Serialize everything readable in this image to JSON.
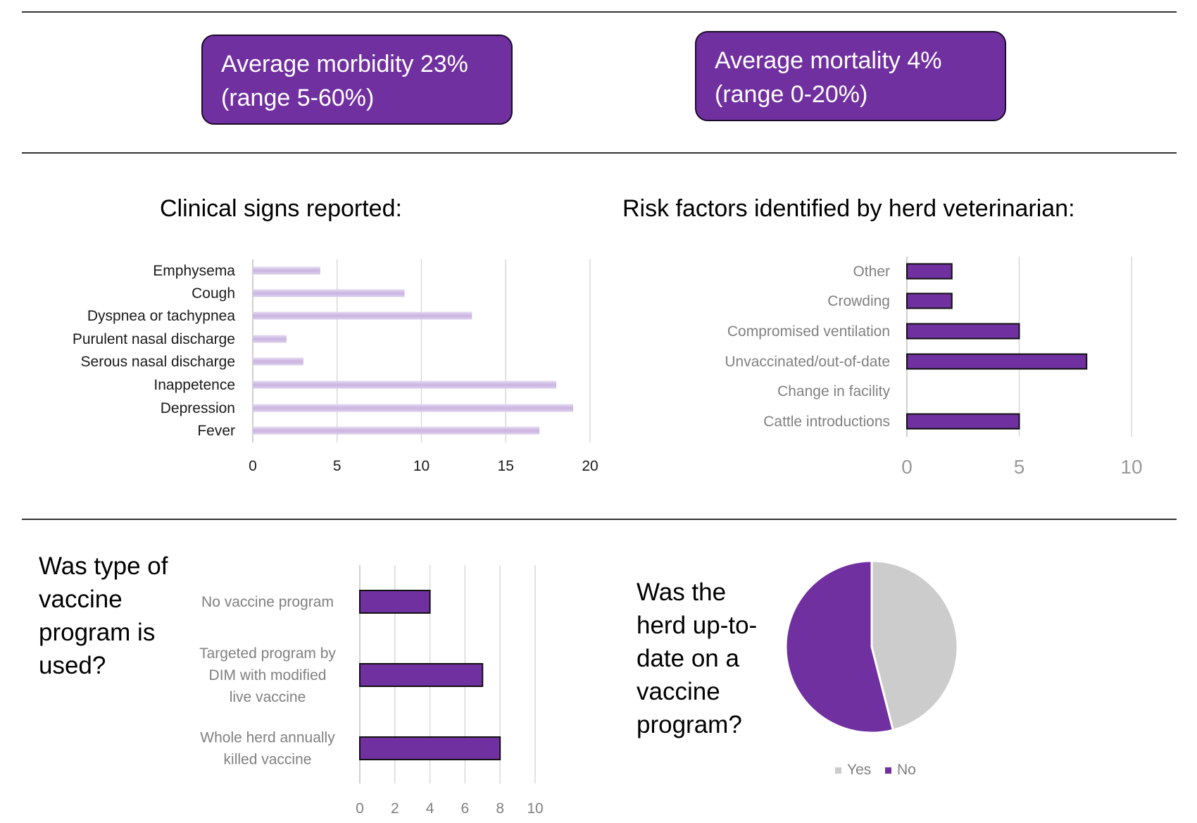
{
  "summary": {
    "morbidity": {
      "line1": "Average morbidity 23%",
      "line2": "(range 5-60%)"
    },
    "mortality": {
      "line1": "Average mortality 4%",
      "line2": "(range 0-20%)"
    }
  },
  "colors": {
    "purple": "#7030a0",
    "lavender": "#d4c1e8",
    "grey_slice": "#cccccc",
    "rule": "#333333"
  },
  "chart_data": [
    {
      "id": "clinical-signs",
      "type": "bar",
      "orientation": "horizontal",
      "title": "Clinical signs reported:",
      "categories": [
        "Emphysema",
        "Cough",
        "Dyspnea or tachypnea",
        "Purulent nasal discharge",
        "Serous nasal discharge",
        "Inappetence",
        "Depression",
        "Fever"
      ],
      "values": [
        4,
        9,
        13,
        2,
        3,
        18,
        19,
        17
      ],
      "xlim": [
        0,
        20
      ],
      "ticks": [
        "0",
        "5",
        "10",
        "15",
        "20"
      ],
      "tick_values": [
        0,
        5,
        10,
        15,
        20
      ],
      "grid": true,
      "color": "#d4c1e8"
    },
    {
      "id": "risk-factors",
      "type": "bar",
      "orientation": "horizontal",
      "title": "Risk factors identified by herd veterinarian:",
      "categories": [
        "Other",
        "Crowding",
        "Compromised ventilation",
        "Unvaccinated/out-of-date",
        "Change in facility",
        "Cattle introductions"
      ],
      "values": [
        2,
        2,
        5,
        8,
        0,
        5
      ],
      "xlim": [
        0,
        10
      ],
      "ticks": [
        "0",
        "5",
        "10"
      ],
      "tick_values": [
        0,
        5,
        10
      ],
      "grid": true,
      "color": "#7030a0"
    },
    {
      "id": "vaccine-program-type",
      "type": "bar",
      "orientation": "horizontal",
      "title": "Was type of vaccine program is used?",
      "title_lines": [
        "Was type of",
        "vaccine",
        "program is",
        "used?"
      ],
      "categories": [
        "No vaccine program",
        "Targeted program by DIM  with modified live vaccine",
        "Whole herd annually killed vaccine"
      ],
      "category_lines": [
        [
          "No vaccine program"
        ],
        [
          "Targeted program by",
          "DIM  with modified",
          "live vaccine"
        ],
        [
          "Whole herd annually",
          "killed vaccine"
        ]
      ],
      "values": [
        4,
        7,
        8
      ],
      "xlim": [
        0,
        10
      ],
      "ticks": [
        "0",
        "2",
        "4",
        "6",
        "8",
        "10"
      ],
      "tick_values": [
        0,
        2,
        4,
        6,
        8,
        10
      ],
      "grid": true,
      "color": "#7030a0"
    },
    {
      "id": "herd-up-to-date",
      "type": "pie",
      "title": "Was the herd up-to-date on a vaccine program?",
      "title_lines": [
        "Was the",
        "herd up-to-",
        "date on a",
        "vaccine",
        "program?"
      ],
      "labels": [
        "Yes",
        "No"
      ],
      "values": [
        46,
        54
      ],
      "colors": [
        "#cccccc",
        "#7030a0"
      ],
      "legend": "bottom"
    }
  ]
}
